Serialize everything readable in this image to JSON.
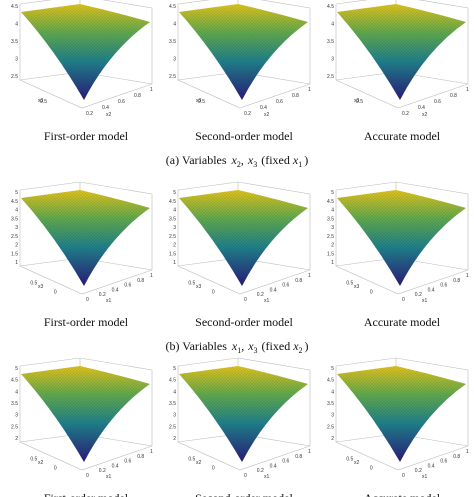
{
  "figure": {
    "rows": [
      {
        "panels": [
          {
            "title": "First-order model"
          },
          {
            "title": "Second-order model"
          },
          {
            "title": "Accurate model"
          }
        ],
        "z_ticks": [
          4.5,
          4,
          3.5,
          3,
          2.5
        ],
        "left_axis": {
          "label": "x3",
          "ticks": [
            0.5
          ]
        },
        "right_axis": {
          "label": "x2",
          "ticks": [
            0.2,
            0.4,
            0.6,
            0.8,
            1
          ]
        },
        "caption": {
          "text": "(a) Variables",
          "vars": [
            [
              "x",
              "2"
            ],
            [
              "x",
              "3"
            ]
          ],
          "sep": ",",
          "fixed_text": "(fixed",
          "fixed_var": [
            "x",
            "1"
          ],
          "close": ")"
        }
      },
      {
        "panels": [
          {
            "title": "First-order model"
          },
          {
            "title": "Second-order model"
          },
          {
            "title": "Accurate model"
          }
        ],
        "z_ticks": [
          5,
          4.5,
          4,
          3.5,
          3,
          2.5,
          2,
          1.5,
          1
        ],
        "left_axis": {
          "label": "x3",
          "ticks": [
            0.5,
            0
          ]
        },
        "right_axis": {
          "label": "x1",
          "ticks": [
            0,
            0.2,
            0.4,
            0.6,
            0.8,
            1
          ]
        },
        "caption": {
          "text": "(b) Variables",
          "vars": [
            [
              "x",
              "1"
            ],
            [
              "x",
              "3"
            ]
          ],
          "sep": ",",
          "fixed_text": "(fixed",
          "fixed_var": [
            "x",
            "2"
          ],
          "close": ")"
        }
      },
      {
        "panels": [
          {
            "title": "First-order model"
          },
          {
            "title": "Second-order model"
          },
          {
            "title": "Accurate model"
          }
        ],
        "z_ticks": [
          5,
          4.5,
          4,
          3.5,
          3,
          2.5,
          2
        ],
        "left_axis": {
          "label": "x2",
          "ticks": [
            0.5,
            0
          ]
        },
        "right_axis": {
          "label": "x1",
          "ticks": [
            0,
            0.2,
            0.4,
            0.6,
            0.8,
            1
          ]
        }
      }
    ]
  }
}
